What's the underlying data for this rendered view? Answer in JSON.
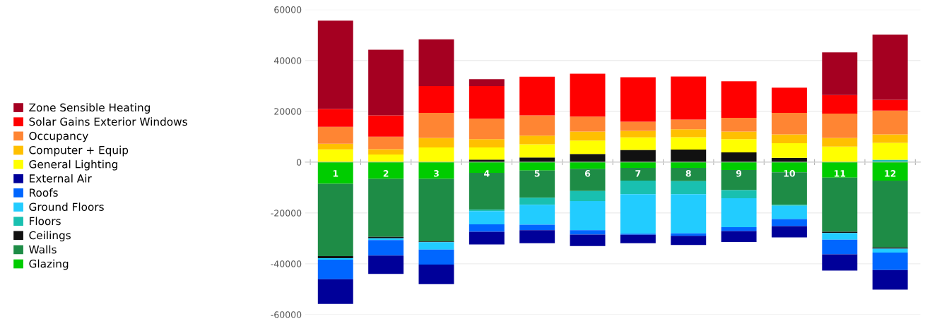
{
  "chart_data": {
    "type": "bar",
    "stacked": true,
    "legend": "left",
    "grid": "y",
    "categories": [
      "1",
      "2",
      "3",
      "4",
      "5",
      "6",
      "7",
      "8",
      "9",
      "10",
      "11",
      "12"
    ],
    "ylim": [
      -60000,
      60000
    ],
    "yticks": [
      -60000,
      -40000,
      -20000,
      0,
      20000,
      40000,
      60000
    ],
    "series": [
      {
        "name": "Glazing",
        "color": "#00cc00",
        "values": [
          -8500,
          -6600,
          -6600,
          -4200,
          -3300,
          -2600,
          -2300,
          -2300,
          -3100,
          -4000,
          -6100,
          -7300
        ]
      },
      {
        "name": "Walls",
        "color": "#1e8c46",
        "values": [
          -28500,
          -22800,
          -24600,
          -14500,
          -10700,
          -8800,
          -5000,
          -5200,
          -7900,
          -12800,
          -21300,
          -26300
        ]
      },
      {
        "name": "Ceilings",
        "color": "#111111",
        "values": [
          -800,
          -600,
          -300,
          1000,
          1800,
          3200,
          4800,
          4900,
          3800,
          1700,
          -500,
          -500
        ]
      },
      {
        "name": "Floors",
        "color": "#19c0b0",
        "values": [
          0,
          0,
          0,
          -600,
          -2800,
          -3900,
          -5300,
          -5100,
          -3200,
          -400,
          0,
          900
        ]
      },
      {
        "name": "Ground Floors",
        "color": "#22ccff",
        "values": [
          -600,
          -700,
          -2900,
          -5200,
          -7800,
          -11500,
          -15600,
          -15400,
          -11400,
          -5200,
          -2600,
          -1500
        ]
      },
      {
        "name": "Roofs",
        "color": "#0066ff",
        "values": [
          -7700,
          -6100,
          -5900,
          -2900,
          -2200,
          -1700,
          -400,
          -1000,
          -1500,
          -2800,
          -5800,
          -6900
        ]
      },
      {
        "name": "External Air",
        "color": "#000099",
        "values": [
          -9700,
          -7200,
          -7700,
          -5000,
          -5100,
          -4500,
          -3300,
          -3600,
          -4300,
          -4400,
          -6400,
          -7700
        ]
      },
      {
        "name": "General Lighting",
        "color": "#ffff00",
        "values": [
          5000,
          3000,
          5800,
          4800,
          5200,
          5300,
          4900,
          4900,
          5200,
          5700,
          6100,
          6700
        ]
      },
      {
        "name": "Computer + Equip",
        "color": "#ffc000",
        "values": [
          2200,
          2100,
          3700,
          3200,
          3400,
          3500,
          2600,
          3100,
          3000,
          3500,
          3400,
          3300
        ]
      },
      {
        "name": "Occupancy",
        "color": "#ff8533",
        "values": [
          6700,
          4900,
          9900,
          8100,
          8000,
          5900,
          3600,
          3800,
          5400,
          8500,
          9600,
          9400
        ]
      },
      {
        "name": "Solar Gains Exterior Windows",
        "color": "#ff0000",
        "values": [
          7000,
          8400,
          10500,
          12800,
          15200,
          16900,
          17500,
          17000,
          14400,
          9900,
          7300,
          4200
        ]
      },
      {
        "name": "Zone Sensible Heating",
        "color": "#a50021",
        "values": [
          34800,
          25800,
          18400,
          2700,
          0,
          0,
          0,
          0,
          0,
          0,
          16800,
          25700
        ]
      }
    ]
  }
}
